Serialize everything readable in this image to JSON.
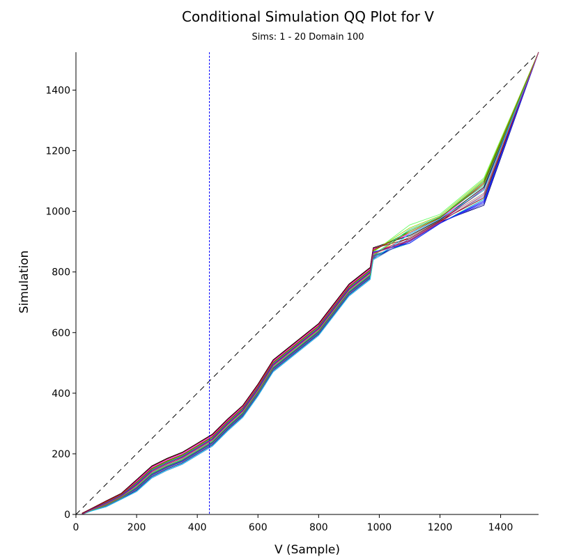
{
  "chart_data": {
    "type": "line",
    "title": "Conditional Simulation QQ Plot for V",
    "subtitle": "Sims: 1 - 20 Domain 100",
    "xlabel": "V (Sample)",
    "ylabel": "Simulation",
    "xlim": [
      0,
      1525
    ],
    "ylim": [
      0,
      1525
    ],
    "xticks": [
      0,
      200,
      400,
      600,
      800,
      1000,
      1200,
      1400
    ],
    "yticks": [
      0,
      200,
      400,
      600,
      800,
      1000,
      1200,
      1400
    ],
    "grid": false,
    "reference_line": {
      "style": "dashed",
      "color": "#000000",
      "from": [
        0,
        0
      ],
      "to": [
        1525,
        1525
      ]
    },
    "marker_line": {
      "x": 440,
      "style": "dashed",
      "color": "#0000ff"
    },
    "x": [
      20,
      50,
      100,
      150,
      200,
      250,
      300,
      350,
      400,
      450,
      500,
      550,
      600,
      650,
      700,
      800,
      900,
      970,
      980,
      1100,
      1200,
      1345,
      1525
    ],
    "series": [
      {
        "color": "#ff0000",
        "values": [
          0,
          15,
          35,
          60,
          95,
          140,
          165,
          185,
          215,
          245,
          295,
          340,
          410,
          490,
          530,
          610,
          740,
          795,
          860,
          915,
          970,
          1070,
          1525
        ]
      },
      {
        "color": "#00cc00",
        "values": [
          2,
          17,
          40,
          65,
          105,
          150,
          175,
          195,
          225,
          255,
          305,
          350,
          420,
          500,
          540,
          620,
          750,
          805,
          870,
          935,
          980,
          1100,
          1525
        ]
      },
      {
        "color": "#0000ff",
        "values": [
          0,
          13,
          30,
          55,
          85,
          130,
          155,
          175,
          205,
          235,
          285,
          330,
          400,
          480,
          520,
          600,
          730,
          785,
          850,
          900,
          962,
          1030,
          1525
        ]
      },
      {
        "color": "#ff00ff",
        "values": [
          3,
          18,
          42,
          68,
          110,
          155,
          180,
          200,
          230,
          260,
          310,
          355,
          425,
          505,
          545,
          625,
          755,
          810,
          875,
          925,
          975,
          1090,
          1525
        ]
      },
      {
        "color": "#000080",
        "values": [
          0,
          12,
          28,
          52,
          80,
          125,
          150,
          170,
          200,
          230,
          280,
          325,
          395,
          475,
          515,
          595,
          725,
          780,
          845,
          905,
          965,
          1020,
          1525
        ]
      },
      {
        "color": "#66ff66",
        "values": [
          1,
          16,
          38,
          62,
          100,
          145,
          170,
          190,
          220,
          250,
          300,
          345,
          415,
          495,
          535,
          615,
          745,
          800,
          865,
          955,
          990,
          1110,
          1525
        ]
      },
      {
        "color": "#00aaaa",
        "values": [
          0,
          14,
          32,
          58,
          90,
          135,
          160,
          180,
          210,
          240,
          290,
          335,
          405,
          485,
          525,
          605,
          735,
          790,
          855,
          895,
          960,
          1040,
          1525
        ]
      },
      {
        "color": "#000000",
        "values": [
          4,
          19,
          45,
          70,
          115,
          160,
          185,
          205,
          235,
          265,
          315,
          360,
          430,
          510,
          550,
          630,
          760,
          815,
          880,
          920,
          972,
          1080,
          1525
        ]
      },
      {
        "color": "#6699cc",
        "values": [
          0,
          11,
          25,
          50,
          75,
          120,
          145,
          165,
          195,
          225,
          275,
          320,
          390,
          470,
          510,
          590,
          720,
          775,
          840,
          910,
          968,
          1050,
          1525
        ]
      },
      {
        "color": "#99cc00",
        "values": [
          2,
          17,
          39,
          64,
          103,
          148,
          173,
          193,
          223,
          253,
          303,
          348,
          418,
          498,
          538,
          618,
          748,
          803,
          868,
          945,
          985,
          1105,
          1525
        ]
      },
      {
        "color": "#3333cc",
        "values": [
          0,
          13,
          31,
          56,
          87,
          132,
          157,
          177,
          207,
          237,
          287,
          332,
          402,
          482,
          522,
          602,
          732,
          787,
          852,
          900,
          962,
          1025,
          1525
        ]
      },
      {
        "color": "#993300",
        "values": [
          2,
          17,
          41,
          66,
          107,
          152,
          177,
          197,
          227,
          257,
          307,
          352,
          422,
          502,
          542,
          622,
          752,
          807,
          872,
          930,
          978,
          1095,
          1525
        ]
      },
      {
        "color": "#808080",
        "values": [
          0,
          13,
          29,
          54,
          83,
          128,
          153,
          173,
          203,
          233,
          283,
          328,
          398,
          478,
          518,
          598,
          728,
          783,
          848,
          915,
          970,
          1060,
          1525
        ]
      },
      {
        "color": "#800080",
        "values": [
          1,
          16,
          37,
          62,
          98,
          143,
          168,
          188,
          218,
          248,
          298,
          343,
          413,
          493,
          533,
          613,
          743,
          798,
          863,
          905,
          965,
          1075,
          1525
        ]
      },
      {
        "color": "#33cc99",
        "values": [
          0,
          14,
          33,
          58,
          92,
          137,
          162,
          182,
          212,
          242,
          292,
          337,
          407,
          487,
          527,
          607,
          737,
          792,
          857,
          940,
          982,
          1085,
          1525
        ]
      },
      {
        "color": "#800000",
        "values": [
          4,
          19,
          44,
          69,
          113,
          158,
          183,
          203,
          233,
          263,
          313,
          358,
          428,
          508,
          548,
          628,
          758,
          813,
          878,
          910,
          968,
          1045,
          1525
        ]
      },
      {
        "color": "#00ccff",
        "values": [
          0,
          11,
          26,
          51,
          77,
          122,
          147,
          167,
          197,
          227,
          277,
          322,
          392,
          472,
          512,
          592,
          722,
          777,
          842,
          925,
          975,
          1070,
          1525
        ]
      },
      {
        "color": "#1a1aff",
        "values": [
          1,
          16,
          38,
          63,
          101,
          146,
          171,
          191,
          221,
          251,
          301,
          346,
          416,
          496,
          536,
          616,
          746,
          801,
          866,
          895,
          960,
          1035,
          1525
        ]
      },
      {
        "color": "#669900",
        "values": [
          0,
          14,
          32,
          57,
          89,
          134,
          159,
          179,
          209,
          239,
          289,
          334,
          404,
          484,
          524,
          604,
          734,
          789,
          854,
          935,
          980,
          1090,
          1525
        ]
      },
      {
        "color": "#cc3366",
        "values": [
          0,
          15,
          35,
          60,
          95,
          140,
          165,
          185,
          215,
          245,
          295,
          340,
          410,
          490,
          530,
          610,
          740,
          795,
          860,
          903,
          964,
          1055,
          1525
        ]
      }
    ]
  }
}
